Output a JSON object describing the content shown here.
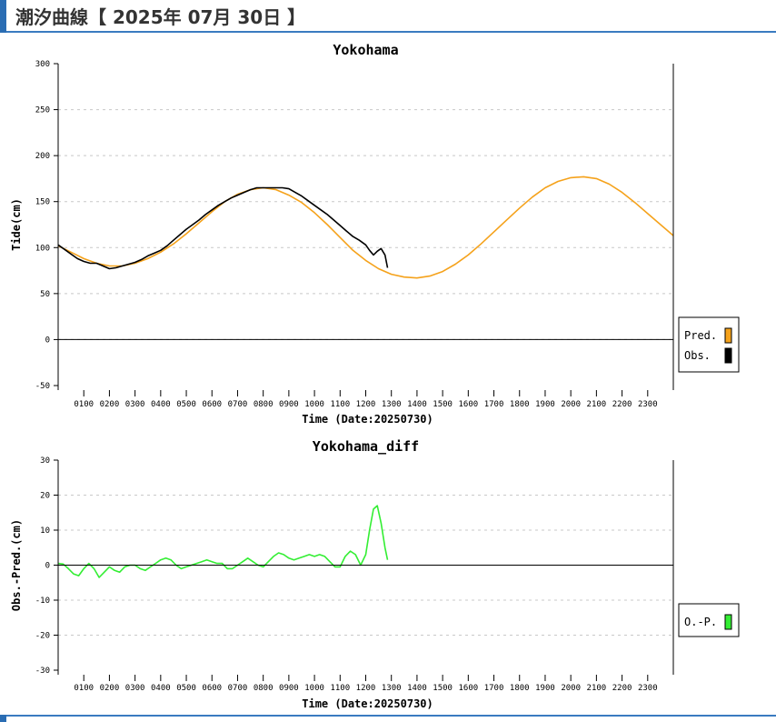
{
  "header": {
    "title": "潮汐曲線【 2025年 07月 30日 】"
  },
  "chart_data": [
    {
      "type": "line",
      "title": "Yokohama",
      "xlabel": "Time (Date:20250730)",
      "ylabel": "Tide(cm)",
      "xlim": [
        0,
        24
      ],
      "ylim": [
        -50,
        300
      ],
      "yticks": [
        300,
        250,
        200,
        150,
        100,
        50,
        0,
        -50
      ],
      "xtick_labels": [
        "0100",
        "0200",
        "0300",
        "0400",
        "0500",
        "0600",
        "0700",
        "0800",
        "0900",
        "1000",
        "1100",
        "1200",
        "1300",
        "1400",
        "1500",
        "1600",
        "1700",
        "1800",
        "1900",
        "2000",
        "2100",
        "2200",
        "2300"
      ],
      "grid": true,
      "legend_position": "right",
      "series": [
        {
          "name": "Pred.",
          "color": "#f5a21b",
          "x": [
            0,
            0.5,
            1,
            1.5,
            2,
            2.5,
            3,
            3.5,
            4,
            4.5,
            5,
            5.5,
            6,
            6.5,
            7,
            7.5,
            8,
            8.5,
            9,
            9.5,
            10,
            10.5,
            11,
            11.5,
            12,
            12.5,
            13,
            13.5,
            14,
            14.5,
            15,
            15.5,
            16,
            16.5,
            17,
            17.5,
            18,
            18.5,
            19,
            19.5,
            20,
            20.5,
            21,
            21.5,
            22,
            22.5,
            23,
            23.5,
            24
          ],
          "y": [
            102,
            95,
            88,
            83,
            80,
            80,
            83,
            88,
            95,
            104,
            115,
            127,
            139,
            150,
            158,
            163,
            165,
            163,
            157,
            149,
            138,
            125,
            111,
            97,
            86,
            77,
            71,
            68,
            67,
            69,
            74,
            82,
            92,
            104,
            117,
            130,
            143,
            155,
            165,
            172,
            176,
            177,
            175,
            169,
            160,
            149,
            137,
            125,
            113
          ]
        },
        {
          "name": "Obs.",
          "color": "#000000",
          "x": [
            0,
            0.25,
            0.5,
            0.75,
            1,
            1.25,
            1.5,
            1.75,
            2,
            2.25,
            2.5,
            2.75,
            3,
            3.25,
            3.5,
            3.75,
            4,
            4.25,
            4.5,
            4.75,
            5,
            5.25,
            5.5,
            5.75,
            6,
            6.25,
            6.5,
            6.75,
            7,
            7.25,
            7.5,
            7.75,
            8,
            8.25,
            8.5,
            8.75,
            9,
            9.25,
            9.5,
            9.75,
            10,
            10.25,
            10.5,
            10.75,
            11,
            11.25,
            11.5,
            11.75,
            12,
            12.15,
            12.3,
            12.45,
            12.6,
            12.75,
            12.85
          ],
          "y": [
            103,
            98,
            93,
            88,
            85,
            83,
            83,
            80,
            77,
            78,
            80,
            82,
            84,
            87,
            91,
            94,
            97,
            102,
            108,
            114,
            120,
            125,
            130,
            136,
            141,
            146,
            150,
            154,
            157,
            160,
            163,
            165,
            165,
            165,
            165,
            165,
            164,
            160,
            156,
            151,
            146,
            141,
            136,
            130,
            124,
            118,
            112,
            108,
            103,
            97,
            92,
            96,
            99,
            92,
            78
          ]
        },
        {
          "name": "",
          "color": "#000000",
          "x": [
            0,
            24
          ],
          "y": [
            0,
            0
          ]
        }
      ]
    },
    {
      "type": "line",
      "title": "Yokohama_diff",
      "xlabel": "Time (Date:20250730)",
      "ylabel": "Obs.-Pred.(cm)",
      "xlim": [
        0,
        24
      ],
      "ylim": [
        -30,
        30
      ],
      "yticks": [
        30,
        20,
        10,
        0,
        -10,
        -20,
        -30
      ],
      "xtick_labels": [
        "0100",
        "0200",
        "0300",
        "0400",
        "0500",
        "0600",
        "0700",
        "0800",
        "0900",
        "1000",
        "1100",
        "1200",
        "1300",
        "1400",
        "1500",
        "1600",
        "1700",
        "1800",
        "1900",
        "2000",
        "2100",
        "2200",
        "2300"
      ],
      "grid": true,
      "legend_position": "right",
      "series": [
        {
          "name": "O.-P.",
          "color": "#33ee33",
          "x": [
            0,
            0.2,
            0.4,
            0.6,
            0.8,
            1,
            1.2,
            1.4,
            1.6,
            1.8,
            2,
            2.2,
            2.4,
            2.6,
            2.8,
            3,
            3.2,
            3.4,
            3.6,
            3.8,
            4,
            4.2,
            4.4,
            4.6,
            4.8,
            5,
            5.2,
            5.4,
            5.6,
            5.8,
            6,
            6.2,
            6.4,
            6.6,
            6.8,
            7,
            7.2,
            7.4,
            7.6,
            7.8,
            8,
            8.2,
            8.4,
            8.6,
            8.8,
            9,
            9.2,
            9.4,
            9.6,
            9.8,
            10,
            10.2,
            10.4,
            10.6,
            10.8,
            11,
            11.2,
            11.4,
            11.6,
            11.8,
            12,
            12.15,
            12.3,
            12.45,
            12.6,
            12.75,
            12.85
          ],
          "y": [
            0.5,
            0.3,
            -1,
            -2.5,
            -3,
            -1,
            0.5,
            -1,
            -3.5,
            -2,
            -0.5,
            -1.5,
            -2,
            -0.5,
            0,
            0,
            -1,
            -1.5,
            -0.5,
            0.5,
            1.5,
            2,
            1.5,
            0,
            -1,
            -0.5,
            0,
            0.5,
            1,
            1.5,
            1,
            0.5,
            0.5,
            -1,
            -1,
            0,
            1,
            2,
            1,
            0,
            -0.5,
            1,
            2.5,
            3.5,
            3,
            2,
            1.5,
            2,
            2.5,
            3,
            2.5,
            3,
            2.5,
            1,
            -0.5,
            -0.5,
            2.5,
            4,
            3,
            0,
            3,
            10,
            16,
            17,
            12,
            5,
            1.5
          ]
        },
        {
          "name": "",
          "color": "#000000",
          "x": [
            0,
            24
          ],
          "y": [
            0,
            0
          ]
        }
      ]
    }
  ]
}
